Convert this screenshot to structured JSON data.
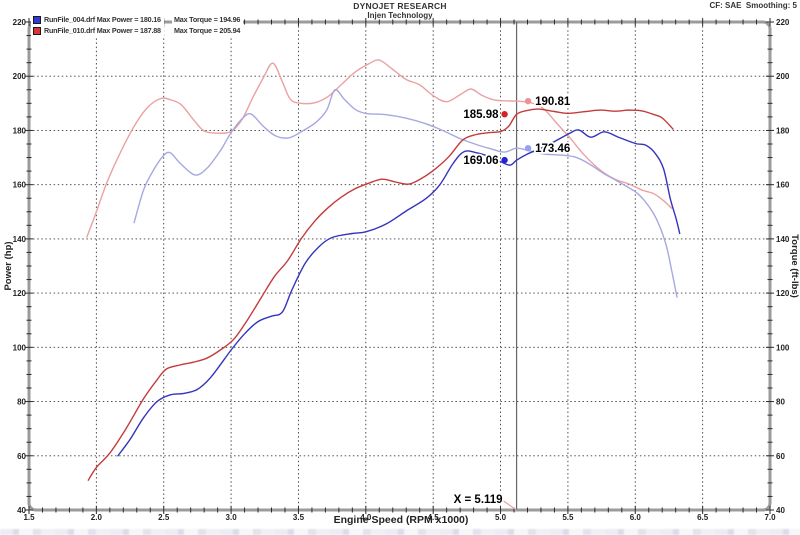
{
  "header": {
    "title": "DYNOJET RESEARCH",
    "subtitle": "Injen Technology",
    "correction": "CF: SAE  Smoothing: 5"
  },
  "legend": {
    "rows": [
      {
        "swatch_color": "#2f3bd4",
        "power_text": "RunFile_004.drf Max Power = 180.16",
        "torque_text": "Max Torque = 194.96"
      },
      {
        "swatch_color": "#dd3333",
        "power_text": "RunFile_010.drf Max Power = 187.88",
        "torque_text": "Max Torque = 205.94"
      }
    ]
  },
  "axes": {
    "x": {
      "title": "Engine Speed (RPM x1000)",
      "min": 1.5,
      "max": 7.0,
      "major_step": 0.5,
      "minor_step": 0.1,
      "tick_labels": [
        "1.5",
        "2.0",
        "2.5",
        "3.0",
        "3.5",
        "4.0",
        "4.5",
        "5.0",
        "5.5",
        "6.0",
        "6.5",
        "7.0"
      ]
    },
    "y_left": {
      "title": "Power (hp)",
      "min": 40,
      "max": 220,
      "major_step": 20,
      "minor_step": 5,
      "tick_labels": [
        "40",
        "60",
        "80",
        "100",
        "120",
        "140",
        "160",
        "180",
        "200",
        "220"
      ]
    },
    "y_right": {
      "title": "Torque (ft-lbs)",
      "min": 40,
      "max": 220,
      "major_step": 20,
      "minor_step": 5,
      "tick_labels": [
        "40",
        "60",
        "80",
        "100",
        "120",
        "140",
        "160",
        "180",
        "200",
        "220"
      ]
    }
  },
  "cursor": {
    "x": 5.119,
    "label": "X = 5.119"
  },
  "callouts": [
    {
      "label": "190.81",
      "value": 190.81,
      "series": "torque_010",
      "side": "right",
      "dot_color": "#ec9494"
    },
    {
      "label": "185.98",
      "value": 185.98,
      "series": "power_010",
      "side": "left",
      "dot_color": "#d42424"
    },
    {
      "label": "173.46",
      "value": 173.46,
      "series": "torque_004",
      "side": "right",
      "dot_color": "#96a2ec"
    },
    {
      "label": "169.06",
      "value": 169.06,
      "series": "power_004",
      "side": "left",
      "dot_color": "#2424d4"
    }
  ],
  "chart_data": {
    "type": "line",
    "title": "DYNOJET RESEARCH",
    "subtitle": "Injen Technology",
    "xlabel": "Engine Speed (RPM x1000)",
    "ylabel_left": "Power (hp)",
    "ylabel_right": "Torque (ft-lbs)",
    "xlim": [
      1.5,
      7.0
    ],
    "ylim": [
      40,
      220
    ],
    "grid": "dashed",
    "cursor_x": 5.119,
    "series": [
      {
        "id": "torque_010",
        "name": "RunFile_010.drf Torque",
        "color": "#eaa1a1",
        "max": 205.94,
        "value_at_cursor": 190.81,
        "points": [
          [
            1.93,
            140.7
          ],
          [
            2.0,
            150
          ],
          [
            2.08,
            161
          ],
          [
            2.18,
            172
          ],
          [
            2.28,
            181.5
          ],
          [
            2.38,
            188.5
          ],
          [
            2.48,
            191.8
          ],
          [
            2.55,
            191.3
          ],
          [
            2.63,
            189.5
          ],
          [
            2.72,
            184
          ],
          [
            2.8,
            179.8
          ],
          [
            2.9,
            179
          ],
          [
            3.0,
            179.6
          ],
          [
            3.08,
            184
          ],
          [
            3.16,
            192
          ],
          [
            3.24,
            199.5
          ],
          [
            3.31,
            204.8
          ],
          [
            3.38,
            198
          ],
          [
            3.44,
            191.5
          ],
          [
            3.52,
            190
          ],
          [
            3.62,
            190.2
          ],
          [
            3.72,
            192.5
          ],
          [
            3.82,
            197
          ],
          [
            3.92,
            201.5
          ],
          [
            4.02,
            204.5
          ],
          [
            4.1,
            205.94
          ],
          [
            4.2,
            202.5
          ],
          [
            4.3,
            198.8
          ],
          [
            4.4,
            196.8
          ],
          [
            4.5,
            192.8
          ],
          [
            4.6,
            190.6
          ],
          [
            4.7,
            193.2
          ],
          [
            4.78,
            195.3
          ],
          [
            4.86,
            193
          ],
          [
            4.95,
            191.3
          ],
          [
            5.05,
            190.9
          ],
          [
            5.12,
            190.81
          ],
          [
            5.22,
            190.3
          ],
          [
            5.32,
            188
          ],
          [
            5.42,
            182.5
          ],
          [
            5.52,
            177
          ],
          [
            5.62,
            171
          ],
          [
            5.74,
            165.4
          ],
          [
            5.85,
            162
          ],
          [
            5.95,
            160.3
          ],
          [
            6.05,
            158
          ],
          [
            6.13,
            156.8
          ],
          [
            6.2,
            154.5
          ],
          [
            6.27,
            151.3
          ]
        ]
      },
      {
        "id": "torque_004",
        "name": "RunFile_004.drf Torque",
        "color": "#a6a8e0",
        "max": 194.96,
        "value_at_cursor": 173.46,
        "points": [
          [
            2.28,
            146
          ],
          [
            2.35,
            158
          ],
          [
            2.42,
            165
          ],
          [
            2.5,
            170.8
          ],
          [
            2.55,
            171.7
          ],
          [
            2.62,
            168
          ],
          [
            2.73,
            163.6
          ],
          [
            2.82,
            166
          ],
          [
            2.92,
            172.5
          ],
          [
            3.0,
            179.2
          ],
          [
            3.09,
            184.7
          ],
          [
            3.15,
            186
          ],
          [
            3.24,
            181.5
          ],
          [
            3.33,
            178
          ],
          [
            3.43,
            177.3
          ],
          [
            3.53,
            179.8
          ],
          [
            3.63,
            183
          ],
          [
            3.71,
            187.5
          ],
          [
            3.77,
            194.96
          ],
          [
            3.84,
            191.5
          ],
          [
            3.92,
            187.8
          ],
          [
            4.0,
            186.3
          ],
          [
            4.15,
            185.8
          ],
          [
            4.3,
            184.5
          ],
          [
            4.45,
            182.4
          ],
          [
            4.57,
            180
          ],
          [
            4.7,
            177
          ],
          [
            4.82,
            174.8
          ],
          [
            4.93,
            173.2
          ],
          [
            5.03,
            172
          ],
          [
            5.12,
            173.46
          ],
          [
            5.22,
            172.4
          ],
          [
            5.32,
            171.3
          ],
          [
            5.45,
            170.9
          ],
          [
            5.56,
            170.1
          ],
          [
            5.66,
            167.6
          ],
          [
            5.76,
            164.3
          ],
          [
            5.87,
            161.2
          ],
          [
            6.0,
            157.4
          ],
          [
            6.07,
            154
          ],
          [
            6.13,
            149.8
          ],
          [
            6.18,
            144.8
          ],
          [
            6.23,
            137.5
          ],
          [
            6.27,
            128.5
          ],
          [
            6.31,
            118.5
          ]
        ]
      },
      {
        "id": "power_010",
        "name": "RunFile_010.drf Power",
        "color": "#c43b3b",
        "max": 187.88,
        "value_at_cursor": 185.98,
        "points": [
          [
            1.94,
            51
          ],
          [
            2.0,
            55.7
          ],
          [
            2.1,
            61
          ],
          [
            2.22,
            70
          ],
          [
            2.35,
            81
          ],
          [
            2.45,
            88
          ],
          [
            2.52,
            92
          ],
          [
            2.62,
            93.5
          ],
          [
            2.72,
            94.5
          ],
          [
            2.82,
            96
          ],
          [
            2.92,
            99
          ],
          [
            3.02,
            103
          ],
          [
            3.12,
            110
          ],
          [
            3.22,
            118
          ],
          [
            3.32,
            126
          ],
          [
            3.42,
            132
          ],
          [
            3.52,
            140
          ],
          [
            3.62,
            146.5
          ],
          [
            3.72,
            151.5
          ],
          [
            3.82,
            155.5
          ],
          [
            3.92,
            158.5
          ],
          [
            4.02,
            160.5
          ],
          [
            4.12,
            162
          ],
          [
            4.22,
            161
          ],
          [
            4.32,
            160.2
          ],
          [
            4.42,
            162.5
          ],
          [
            4.52,
            166
          ],
          [
            4.62,
            170.5
          ],
          [
            4.72,
            176.5
          ],
          [
            4.82,
            178.5
          ],
          [
            4.92,
            179.2
          ],
          [
            5.0,
            179.6
          ],
          [
            5.06,
            181.5
          ],
          [
            5.12,
            185.98
          ],
          [
            5.2,
            187.4
          ],
          [
            5.28,
            187.88
          ],
          [
            5.4,
            187
          ],
          [
            5.5,
            186.3
          ],
          [
            5.62,
            186.9
          ],
          [
            5.74,
            187.5
          ],
          [
            5.85,
            187.1
          ],
          [
            5.95,
            187.5
          ],
          [
            6.05,
            187.2
          ],
          [
            6.13,
            186
          ],
          [
            6.2,
            184.6
          ],
          [
            6.28,
            180.5
          ]
        ]
      },
      {
        "id": "power_004",
        "name": "RunFile_004.drf Power",
        "color": "#3434bd",
        "max": 180.16,
        "value_at_cursor": 169.06,
        "points": [
          [
            2.16,
            60
          ],
          [
            2.25,
            66
          ],
          [
            2.35,
            74
          ],
          [
            2.45,
            80
          ],
          [
            2.55,
            82.5
          ],
          [
            2.65,
            83
          ],
          [
            2.75,
            84.5
          ],
          [
            2.85,
            89
          ],
          [
            3.0,
            99
          ],
          [
            3.1,
            105
          ],
          [
            3.2,
            109.5
          ],
          [
            3.3,
            111.5
          ],
          [
            3.38,
            113
          ],
          [
            3.45,
            121
          ],
          [
            3.55,
            131
          ],
          [
            3.65,
            137
          ],
          [
            3.75,
            140.5
          ],
          [
            3.9,
            142
          ],
          [
            4.0,
            142.6
          ],
          [
            4.15,
            145.5
          ],
          [
            4.3,
            150.3
          ],
          [
            4.45,
            155
          ],
          [
            4.55,
            160
          ],
          [
            4.65,
            168
          ],
          [
            4.73,
            172.2
          ],
          [
            4.82,
            171.8
          ],
          [
            4.92,
            170.3
          ],
          [
            5.0,
            168.5
          ],
          [
            5.07,
            167.2
          ],
          [
            5.12,
            169.06
          ],
          [
            5.2,
            171.3
          ],
          [
            5.35,
            174.6
          ],
          [
            5.5,
            178.6
          ],
          [
            5.58,
            180.16
          ],
          [
            5.67,
            177.5
          ],
          [
            5.77,
            179.5
          ],
          [
            5.88,
            177.4
          ],
          [
            6.0,
            175.2
          ],
          [
            6.08,
            174.5
          ],
          [
            6.15,
            171.4
          ],
          [
            6.21,
            165.8
          ],
          [
            6.26,
            154.8
          ],
          [
            6.3,
            148
          ],
          [
            6.33,
            142
          ]
        ]
      }
    ]
  }
}
